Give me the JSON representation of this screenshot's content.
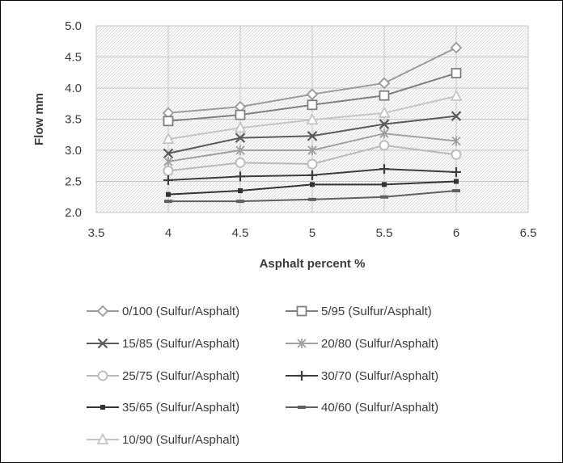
{
  "chart_data": {
    "type": "line",
    "xlabel": "Asphalt percent %",
    "ylabel": "Flow mm",
    "xlim": [
      3.5,
      6.5
    ],
    "ylim": [
      2.0,
      5.0
    ],
    "x_ticks": [
      3.5,
      4,
      4.5,
      5,
      5.5,
      6,
      6.5
    ],
    "x_tick_labels": [
      "3.5",
      "4",
      "4.5",
      "5",
      "5.5",
      "6",
      "6.5"
    ],
    "y_ticks": [
      2.0,
      2.5,
      3.0,
      3.5,
      4.0,
      4.5,
      5.0
    ],
    "y_tick_labels": [
      "2.0",
      "2.5",
      "3.0",
      "3.5",
      "4.0",
      "4.5",
      "5.0"
    ],
    "grid": true,
    "plot_background": "hatched",
    "legend_position": "bottom",
    "x": [
      4,
      4.5,
      5,
      5.5,
      6
    ],
    "series": [
      {
        "name": "0/100 (Sulfur/Asphalt)",
        "marker": "diamond",
        "color": "#9a9a9a",
        "values": [
          3.6,
          3.7,
          3.9,
          4.08,
          4.65
        ]
      },
      {
        "name": "5/95 (Sulfur/Asphalt)",
        "marker": "square",
        "color": "#7f7f7f",
        "values": [
          3.47,
          3.57,
          3.73,
          3.88,
          4.24
        ]
      },
      {
        "name": "15/85 (Sulfur/Asphalt)",
        "marker": "x",
        "color": "#5a5a5a",
        "values": [
          2.95,
          3.2,
          3.23,
          3.42,
          3.55
        ]
      },
      {
        "name": "20/80 (Sulfur/Asphalt)",
        "marker": "star",
        "color": "#a0a0a0",
        "values": [
          2.82,
          3.0,
          3.0,
          3.27,
          3.15
        ]
      },
      {
        "name": "25/75 (Sulfur/Asphalt)",
        "marker": "circle",
        "color": "#b8b8b8",
        "values": [
          2.67,
          2.8,
          2.78,
          3.08,
          2.93
        ]
      },
      {
        "name": "30/70 (Sulfur/Asphalt)",
        "marker": "plus",
        "color": "#3c3c3c",
        "values": [
          2.52,
          2.58,
          2.6,
          2.7,
          2.65
        ]
      },
      {
        "name": "35/65 (Sulfur/Asphalt)",
        "marker": "small-square",
        "color": "#333333",
        "values": [
          2.29,
          2.35,
          2.45,
          2.45,
          2.5
        ]
      },
      {
        "name": "40/60 (Sulfur/Asphalt)",
        "marker": "dash",
        "color": "#5f5f5f",
        "values": [
          2.18,
          2.18,
          2.21,
          2.25,
          2.35
        ]
      },
      {
        "name": "10/90 (Sulfur/Asphalt)",
        "marker": "triangle",
        "color": "#c4c4c4",
        "values": [
          3.18,
          3.36,
          3.49,
          3.6,
          3.87
        ]
      }
    ]
  }
}
